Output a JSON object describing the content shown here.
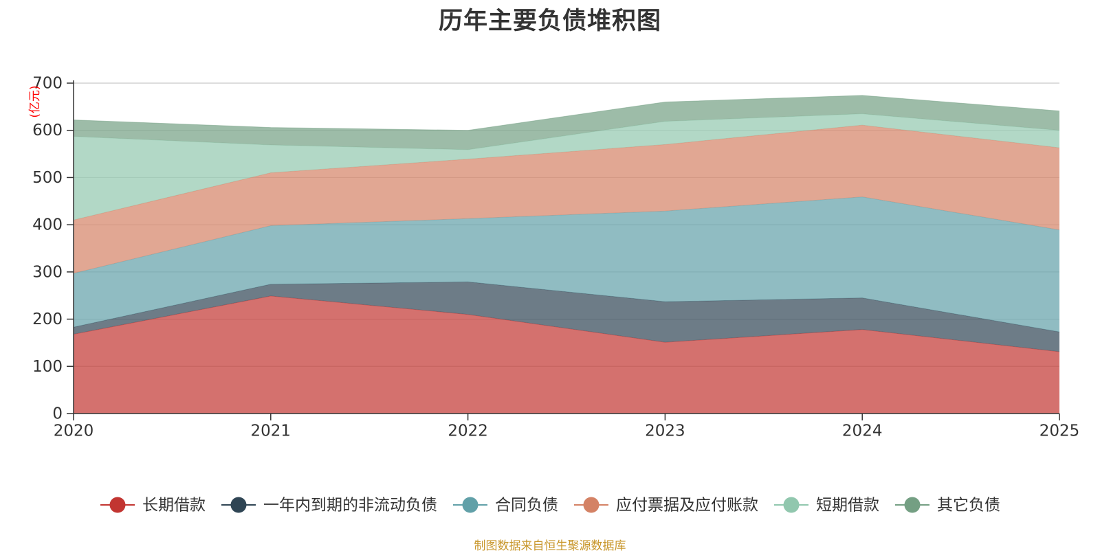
{
  "chart_data": {
    "type": "area",
    "stacked": true,
    "title": "历年主要负债堆积图",
    "y_unit": "(亿元)",
    "categories": [
      "2020",
      "2021",
      "2022",
      "2023",
      "2024",
      "2025"
    ],
    "ylim": [
      0,
      700
    ],
    "yticks": [
      0,
      100,
      200,
      300,
      400,
      500,
      600,
      700
    ],
    "grid": true,
    "legend_position": "bottom",
    "series": [
      {
        "name": "长期借款",
        "color": "#c23531",
        "values": [
          168,
          249,
          210,
          151,
          178,
          131
        ]
      },
      {
        "name": "一年内到期的非流动负债",
        "color": "#2f4554",
        "values": [
          15,
          25,
          69,
          86,
          67,
          42
        ]
      },
      {
        "name": "合同负债",
        "color": "#61a0a8",
        "values": [
          114,
          124,
          134,
          192,
          214,
          216
        ]
      },
      {
        "name": "应付票据及应付账款",
        "color": "#d48265",
        "values": [
          113,
          112,
          126,
          141,
          152,
          174
        ]
      },
      {
        "name": "短期借款",
        "color": "#91c7ae",
        "values": [
          177,
          59,
          20,
          49,
          24,
          37
        ]
      },
      {
        "name": "其它负债",
        "color": "#749f83",
        "values": [
          35,
          37,
          41,
          41,
          39,
          41
        ]
      }
    ]
  },
  "source_note": "制图数据来自恒生聚源数据库"
}
